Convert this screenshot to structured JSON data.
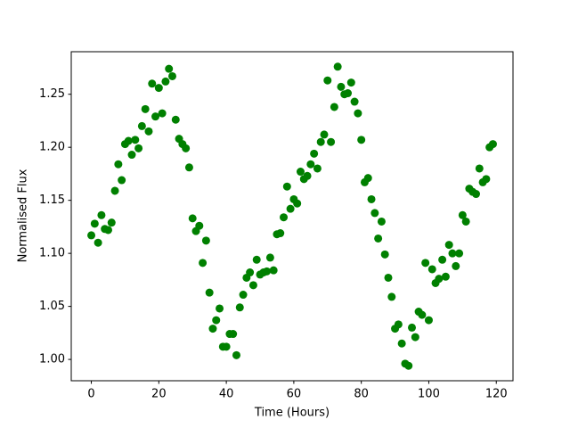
{
  "chart_data": {
    "type": "scatter",
    "xlabel": "Time (Hours)",
    "ylabel": "Normalised Flux",
    "color": "#008000",
    "x": [
      0,
      1,
      2,
      3,
      4,
      5,
      6,
      7,
      8,
      9,
      10,
      11,
      12,
      13,
      14,
      15,
      16,
      17,
      18,
      19,
      20,
      21,
      22,
      23,
      24,
      25,
      26,
      27,
      28,
      29,
      30,
      31,
      32,
      33,
      34,
      35,
      36,
      37,
      38,
      39,
      40,
      41,
      42,
      43,
      44,
      45,
      46,
      47,
      48,
      49,
      50,
      51,
      52,
      53,
      54,
      55,
      56,
      57,
      58,
      59,
      60,
      61,
      62,
      63,
      64,
      65,
      66,
      67,
      68,
      69,
      70,
      71,
      72,
      73,
      74,
      75,
      76,
      77,
      78,
      79,
      80,
      81,
      82,
      83,
      84,
      85,
      86,
      87,
      88,
      89,
      90,
      91,
      92,
      93,
      94,
      95,
      96,
      97,
      98,
      99,
      100,
      101,
      102,
      103,
      104,
      105,
      106,
      107,
      108,
      109,
      110,
      111,
      112,
      113,
      114,
      115,
      116,
      117,
      118,
      119
    ],
    "values": [
      1.117,
      1.128,
      1.11,
      1.136,
      1.123,
      1.122,
      1.129,
      1.159,
      1.184,
      1.169,
      1.203,
      1.206,
      1.193,
      1.207,
      1.199,
      1.22,
      1.236,
      1.215,
      1.26,
      1.229,
      1.256,
      1.232,
      1.262,
      1.274,
      1.267,
      1.226,
      1.208,
      1.203,
      1.199,
      1.181,
      1.133,
      1.121,
      1.126,
      1.091,
      1.112,
      1.063,
      1.029,
      1.037,
      1.048,
      1.012,
      1.012,
      1.024,
      1.024,
      1.004,
      1.049,
      1.061,
      1.077,
      1.082,
      1.07,
      1.094,
      1.08,
      1.082,
      1.083,
      1.096,
      1.084,
      1.118,
      1.119,
      1.134,
      1.163,
      1.142,
      1.151,
      1.147,
      1.177,
      1.17,
      1.173,
      1.184,
      1.194,
      1.18,
      1.205,
      1.212,
      1.263,
      1.205,
      1.238,
      1.276,
      1.257,
      1.25,
      1.251,
      1.261,
      1.243,
      1.232,
      1.207,
      1.167,
      1.171,
      1.151,
      1.138,
      1.114,
      1.13,
      1.099,
      1.077,
      1.059,
      1.029,
      1.033,
      1.015,
      0.996,
      0.994,
      1.03,
      1.021,
      1.045,
      1.042,
      1.091,
      1.037,
      1.085,
      1.072,
      1.076,
      1.094,
      1.078,
      1.108,
      1.1,
      1.088,
      1.1,
      1.136,
      1.13,
      1.161,
      1.158,
      1.156,
      1.18,
      1.167,
      1.17,
      1.2,
      1.203
    ],
    "xlim": [
      -5.95,
      124.95
    ],
    "xticks": [
      0,
      20,
      40,
      60,
      80,
      100,
      120
    ],
    "ylim": [
      0.9799,
      1.2901
    ],
    "yticks": [
      {
        "value": 1,
        "label": "1.00"
      },
      1.05,
      {
        "value": 1.1,
        "label": "1.10"
      },
      1.15,
      {
        "value": 1.2,
        "label": "1.20"
      },
      1.25
    ]
  }
}
